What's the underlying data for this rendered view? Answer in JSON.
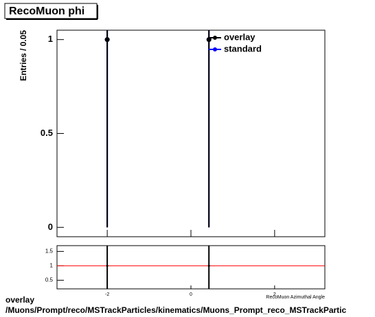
{
  "chart_data": [
    {
      "type": "scatter",
      "title": "RecoMuon phi",
      "ylabel": "Entries / 0.05",
      "xlim": [
        -3.2,
        3.2
      ],
      "ylim": [
        -0.05,
        1.05
      ],
      "yticks": [
        0,
        0.5,
        1
      ],
      "legend": "top-right",
      "series": [
        {
          "name": "overlay",
          "color": "#000000",
          "x": [
            -2.0,
            0.43
          ],
          "values": [
            1,
            1
          ],
          "errors": [
            1,
            1
          ]
        },
        {
          "name": "standard",
          "color": "#0000ff",
          "x": [
            -2.0,
            0.43
          ],
          "values": [
            1,
            1
          ],
          "errors": [
            1,
            1
          ]
        }
      ]
    },
    {
      "type": "scatter",
      "xlabel": "RecoMuon Azimuthal Angle",
      "xlim": [
        -3.2,
        3.2
      ],
      "ylim": [
        0.2,
        1.7
      ],
      "xticks": [
        -2,
        0,
        2
      ],
      "yticks": [
        0.5,
        1,
        1.5
      ],
      "reference_line": 1,
      "reference_color": "#ff0000",
      "series": [
        {
          "color": "#000000",
          "x": [
            -2.0,
            0.43
          ],
          "values": [
            1,
            1
          ],
          "errors": [
            1.41,
            1.41
          ]
        }
      ]
    }
  ],
  "footer": {
    "line1": "overlay",
    "line2": "/Muons/Prompt/reco/MSTrackParticles/kinematics/Muons_Prompt_reco_MSTrackPartic"
  }
}
